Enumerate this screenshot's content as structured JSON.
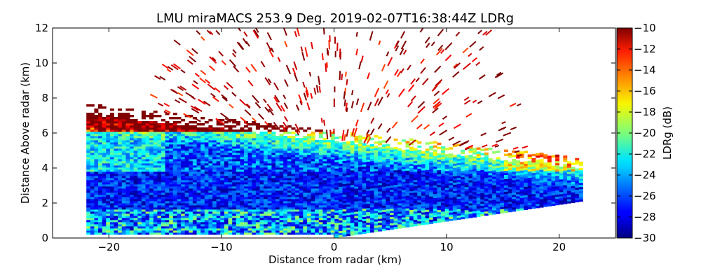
{
  "chart_data": {
    "type": "heatmap",
    "title": "LMU miraMACS 253.9 Deg. 2019-02-07T16:38:44Z  LDRg",
    "xlabel": "Distance from radar (km)",
    "ylabel": "Distance Above radar  (km)",
    "colorbar_label": "LDRg (dB)",
    "xlim": [
      -25,
      25
    ],
    "ylim": [
      0,
      12
    ],
    "x_ticks": [
      -20,
      -10,
      0,
      10,
      20
    ],
    "y_ticks": [
      0,
      2,
      4,
      6,
      8,
      10,
      12
    ],
    "clim": [
      -30,
      -10
    ],
    "colorbar_ticks": [
      -10,
      -12,
      -14,
      -16,
      -18,
      -20,
      -22,
      -24,
      -26,
      -28,
      -30
    ],
    "colormap": "jet",
    "scan": {
      "azimuth_deg": 253.9,
      "x_start_km": -22,
      "x_end_km": 22,
      "top_left_edge_km": [
        -22,
        7.0
      ],
      "top_right_edge_km": [
        22,
        3.9
      ]
    },
    "layers": [
      {
        "name": "near-ground mixed returns",
        "y_range_km": [
          0.2,
          1.6
        ],
        "ldr_db": -24
      },
      {
        "name": "lower cloud band",
        "y_range_km": [
          1.6,
          3.8
        ],
        "ldr_db": -27
      },
      {
        "name": "mid cloud band",
        "y_range_km": [
          3.8,
          6.0
        ],
        "ldr_db": -26
      },
      {
        "name": "upper edge / cloud top",
        "y_range_km": [
          6.0,
          8.5
        ],
        "ldr_db": -14
      },
      {
        "name": "sparse high echoes",
        "y_range_km": [
          8.5,
          12.0
        ],
        "ldr_db": -11
      }
    ]
  },
  "colors": {
    "background": "#ffffff",
    "axes": "#000000"
  }
}
